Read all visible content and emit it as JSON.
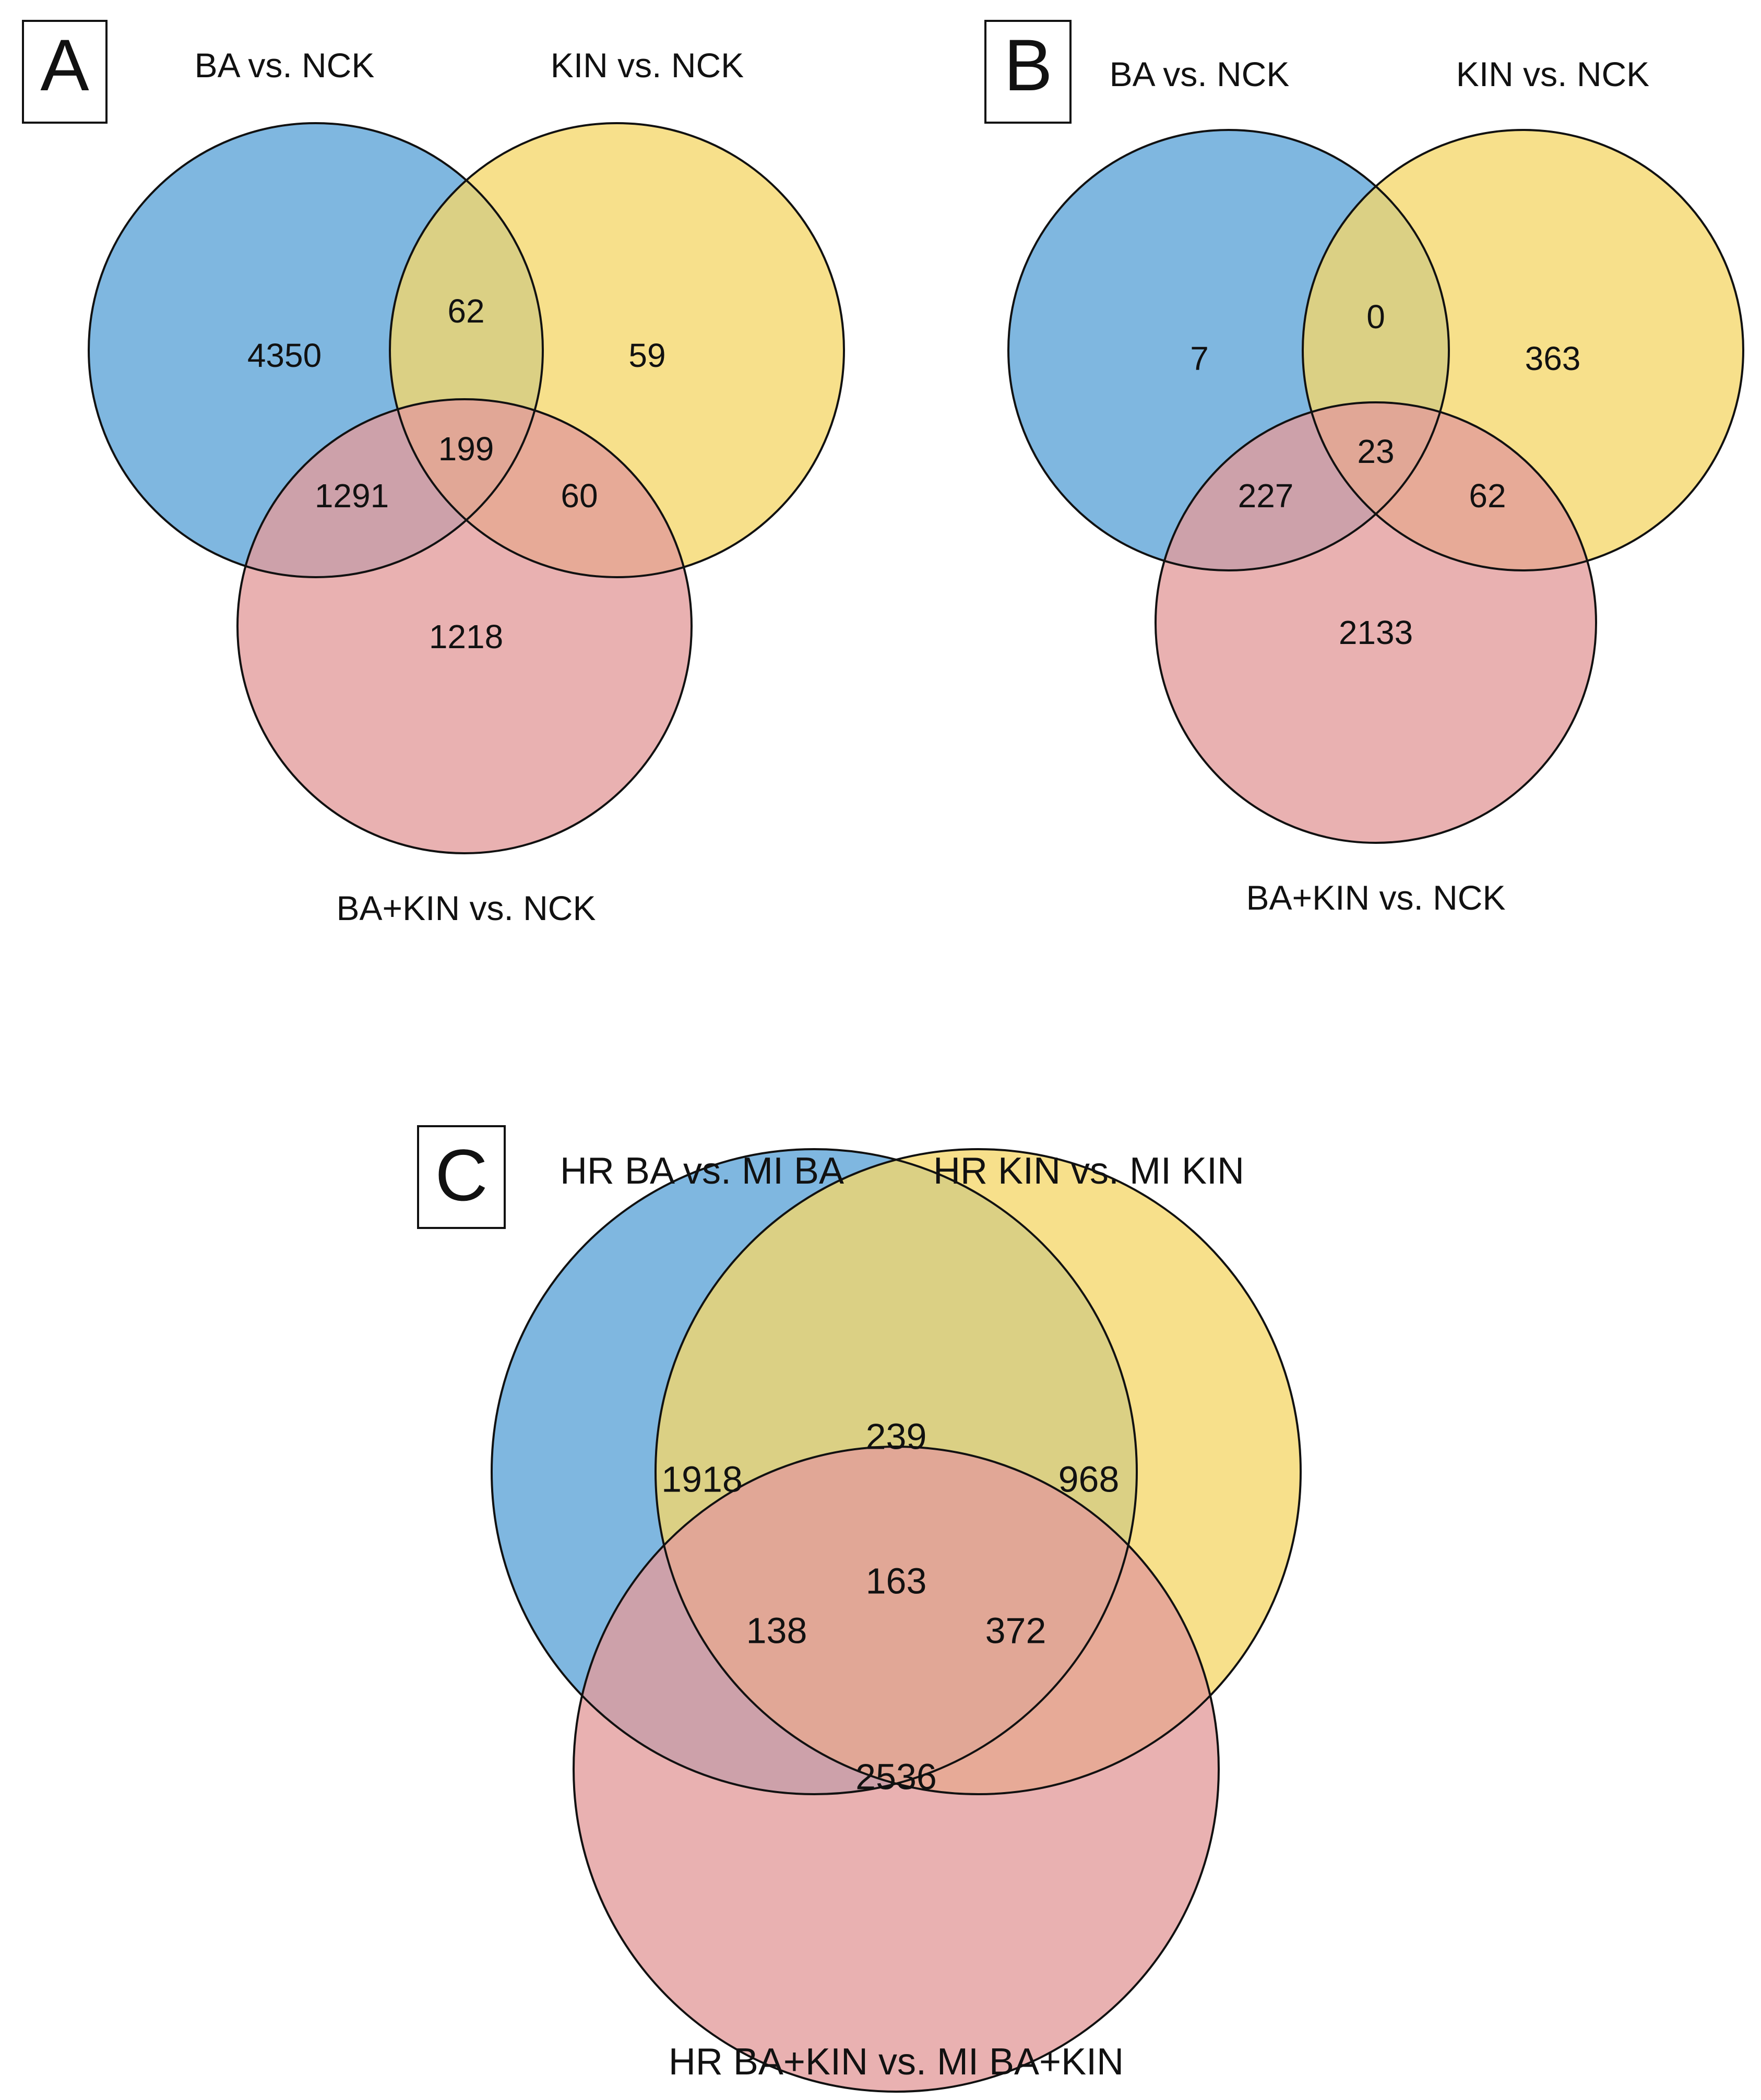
{
  "colors": {
    "set1": "#5ba3d7",
    "set2": "#f5d76a",
    "set3": "#e39b9b",
    "outline": "#111111"
  },
  "panels": [
    {
      "id": "A",
      "letter": "A",
      "sets": [
        "BA vs. NCK",
        "KIN vs. NCK",
        "BA+KIN vs. NCK"
      ],
      "counts": {
        "only_1": "4350",
        "only_2": "59",
        "only_3": "1218",
        "set_1_2": "62",
        "set_1_3": "1291",
        "set_2_3": "60",
        "set_1_2_3": "199"
      }
    },
    {
      "id": "B",
      "letter": "B",
      "sets": [
        "BA vs. NCK",
        "KIN vs. NCK",
        "BA+KIN vs. NCK"
      ],
      "counts": {
        "only_1": "7",
        "only_2": "363",
        "only_3": "2133",
        "set_1_2": "0",
        "set_1_3": "227",
        "set_2_3": "62",
        "set_1_2_3": "23"
      }
    },
    {
      "id": "C",
      "letter": "C",
      "sets": [
        "HR BA vs. MI BA",
        "HR KIN vs. MI KIN",
        "HR BA+KIN vs. MI BA+KIN"
      ],
      "counts": {
        "only_1": "1918",
        "only_2": "968",
        "only_3": "2536",
        "set_1_2": "239",
        "set_1_3": "138",
        "set_2_3": "372",
        "set_1_2_3": "163"
      }
    }
  ]
}
